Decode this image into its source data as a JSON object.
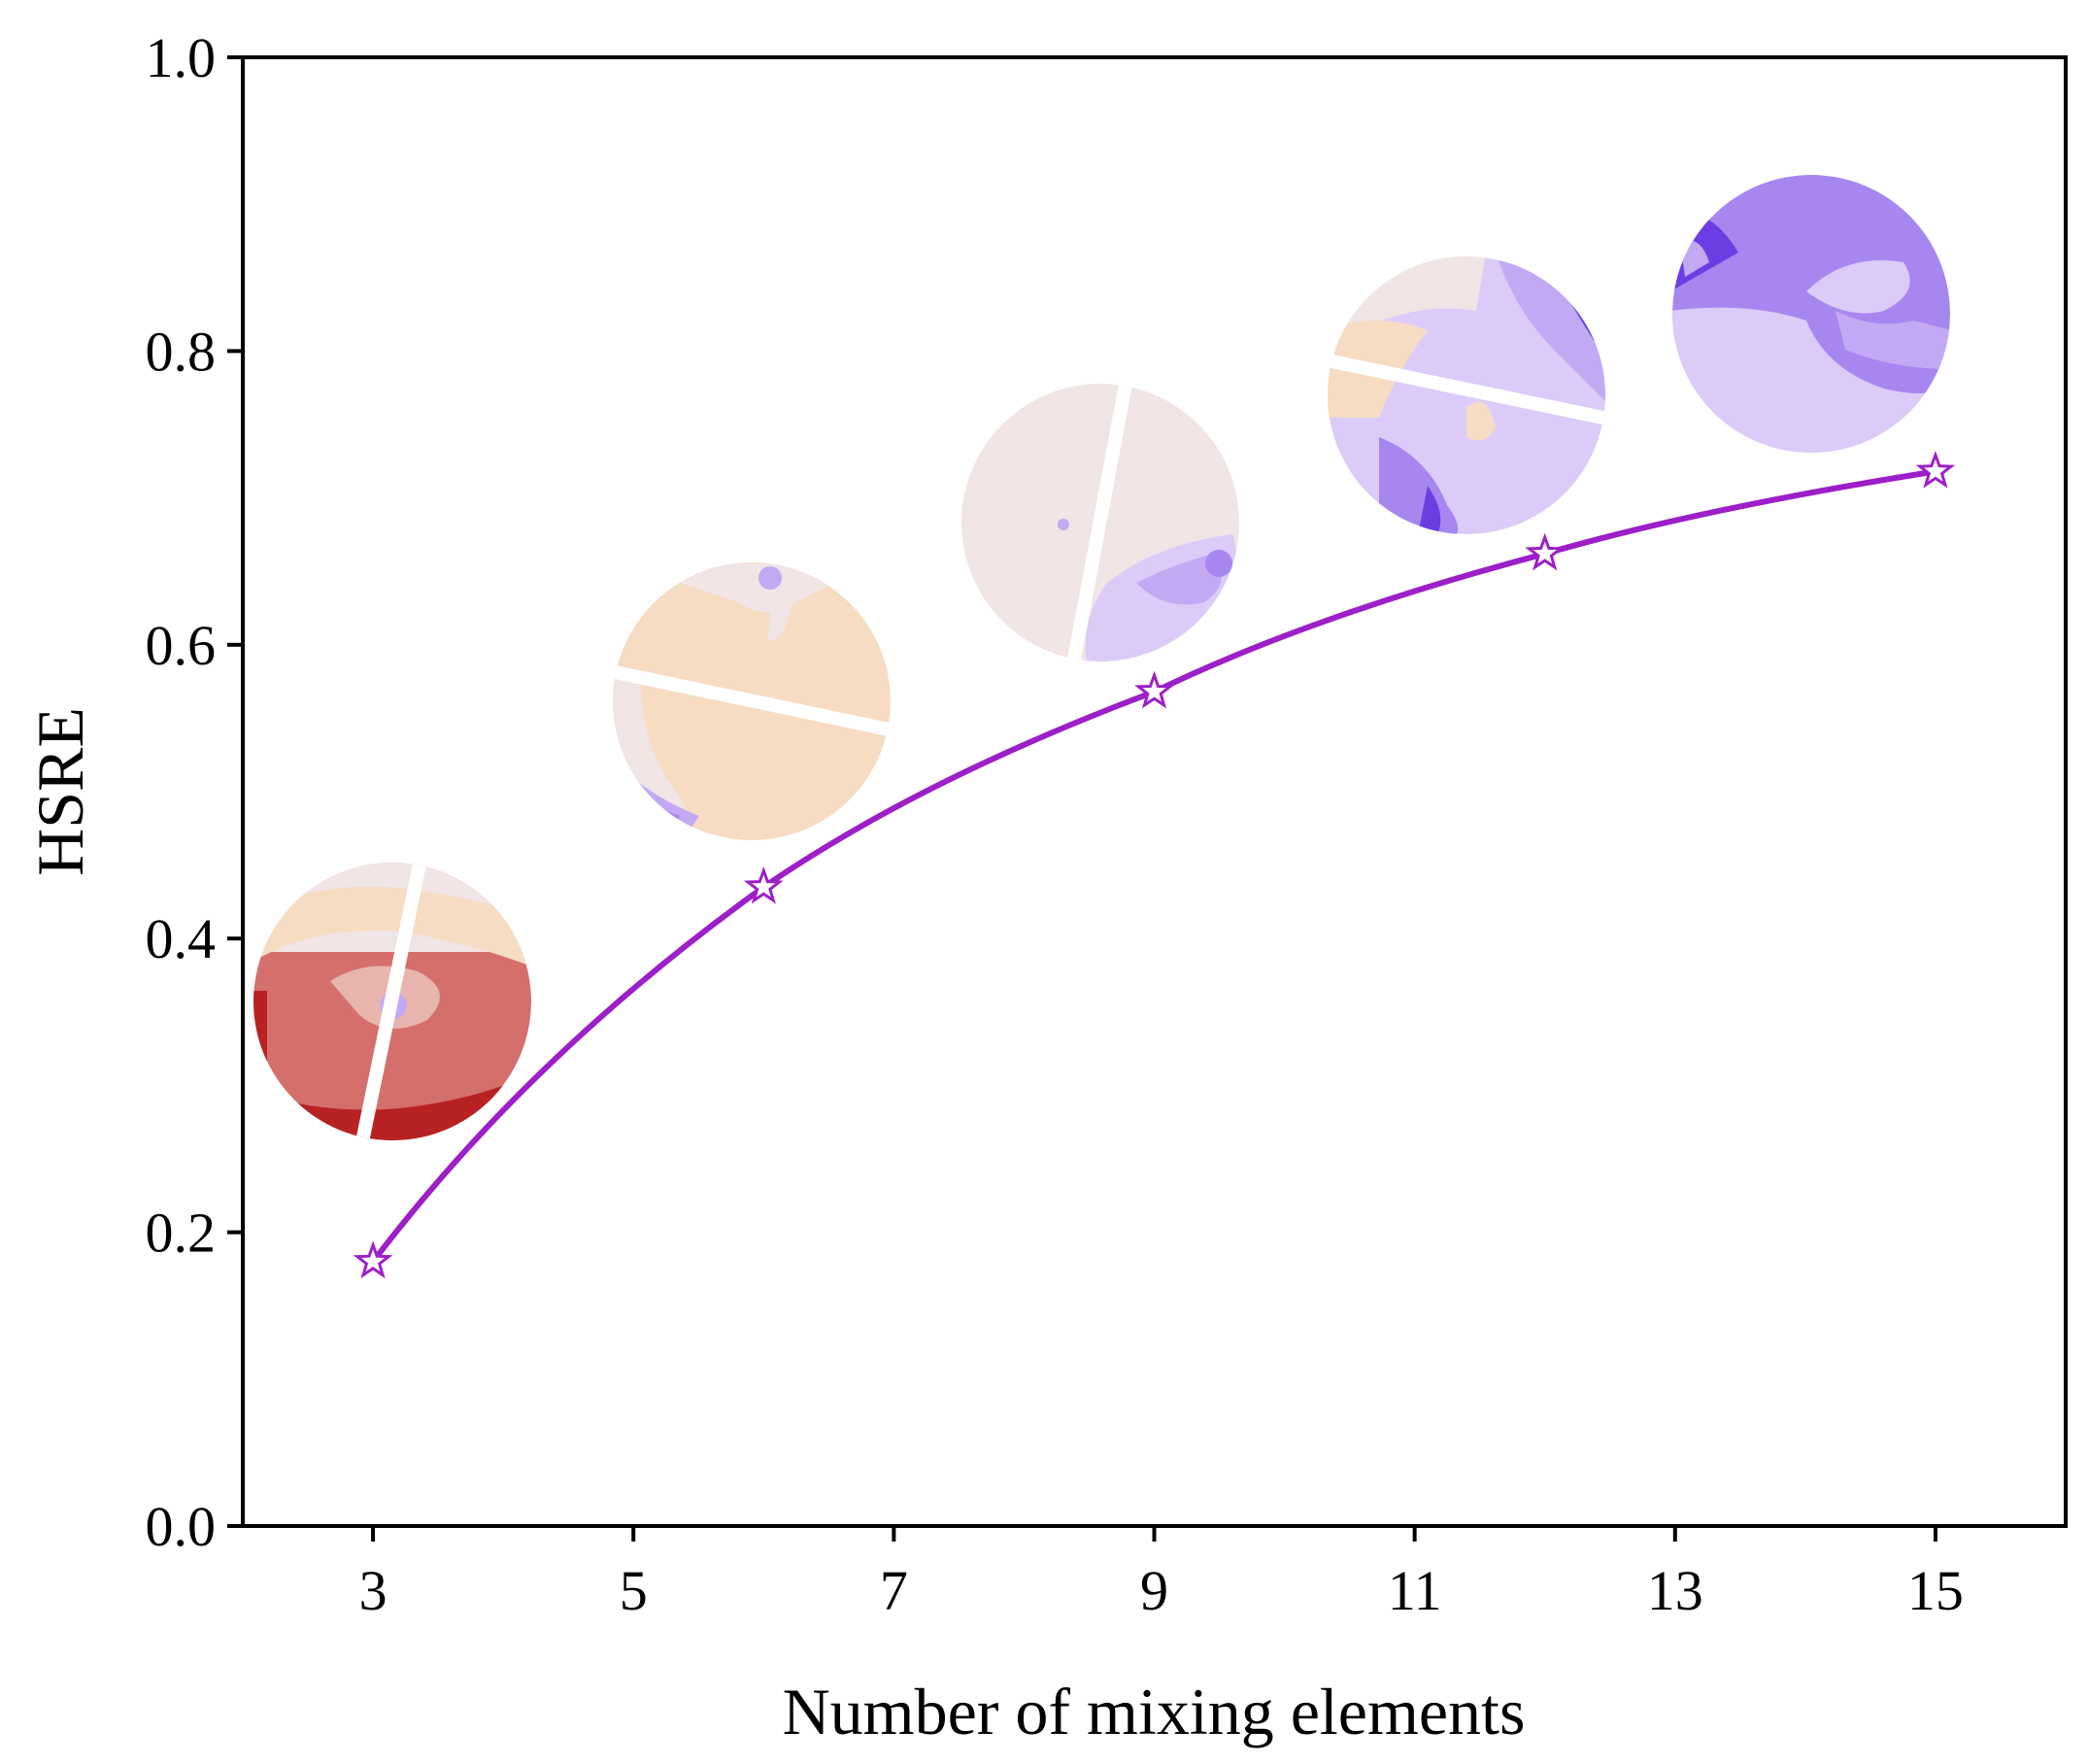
{
  "chart_data": {
    "type": "line",
    "title": "",
    "xlabel": "Number of mixing elements",
    "ylabel": "HSRE",
    "xlim": [
      2,
      16
    ],
    "ylim": [
      0.0,
      1.0
    ],
    "x_ticks": [
      3,
      5,
      7,
      9,
      11,
      13,
      15
    ],
    "x_tick_labels": [
      "3",
      "5",
      "7",
      "9",
      "11",
      "13",
      "15"
    ],
    "y_ticks": [
      0.0,
      0.2,
      0.4,
      0.6,
      0.8,
      1.0
    ],
    "y_tick_labels": [
      "0.0",
      "0.2",
      "0.4",
      "0.6",
      "0.8",
      "1.0"
    ],
    "grid": false,
    "series": [
      {
        "name": "HSRE",
        "marker": "hollow star",
        "color": "#9d1fc8",
        "x": [
          3,
          6,
          9,
          12,
          15
        ],
        "values": [
          0.18,
          0.435,
          0.568,
          0.662,
          0.718
        ]
      }
    ],
    "insets": [
      {
        "name": "cross-section-3",
        "at_x": 3,
        "theme": "red-dominant"
      },
      {
        "name": "cross-section-6",
        "at_x": 6,
        "theme": "orange-dominant"
      },
      {
        "name": "cross-section-9",
        "at_x": 9,
        "theme": "pink-neutral"
      },
      {
        "name": "cross-section-12",
        "at_x": 12,
        "theme": "lavender"
      },
      {
        "name": "cross-section-15",
        "at_x": 15,
        "theme": "purple"
      }
    ]
  },
  "colors": {
    "line": "#9d1fc8",
    "axis": "#000000",
    "red_dark": "#b82223",
    "red": "#d46f6c",
    "pink": "#e7b5ae",
    "peach": "#f5dcc3",
    "neutral": "#f0e4e4",
    "lavender_light": "#dccbf8",
    "lavender": "#c3a9f3",
    "violet": "#a786ef",
    "indigo": "#6b3ee4"
  }
}
